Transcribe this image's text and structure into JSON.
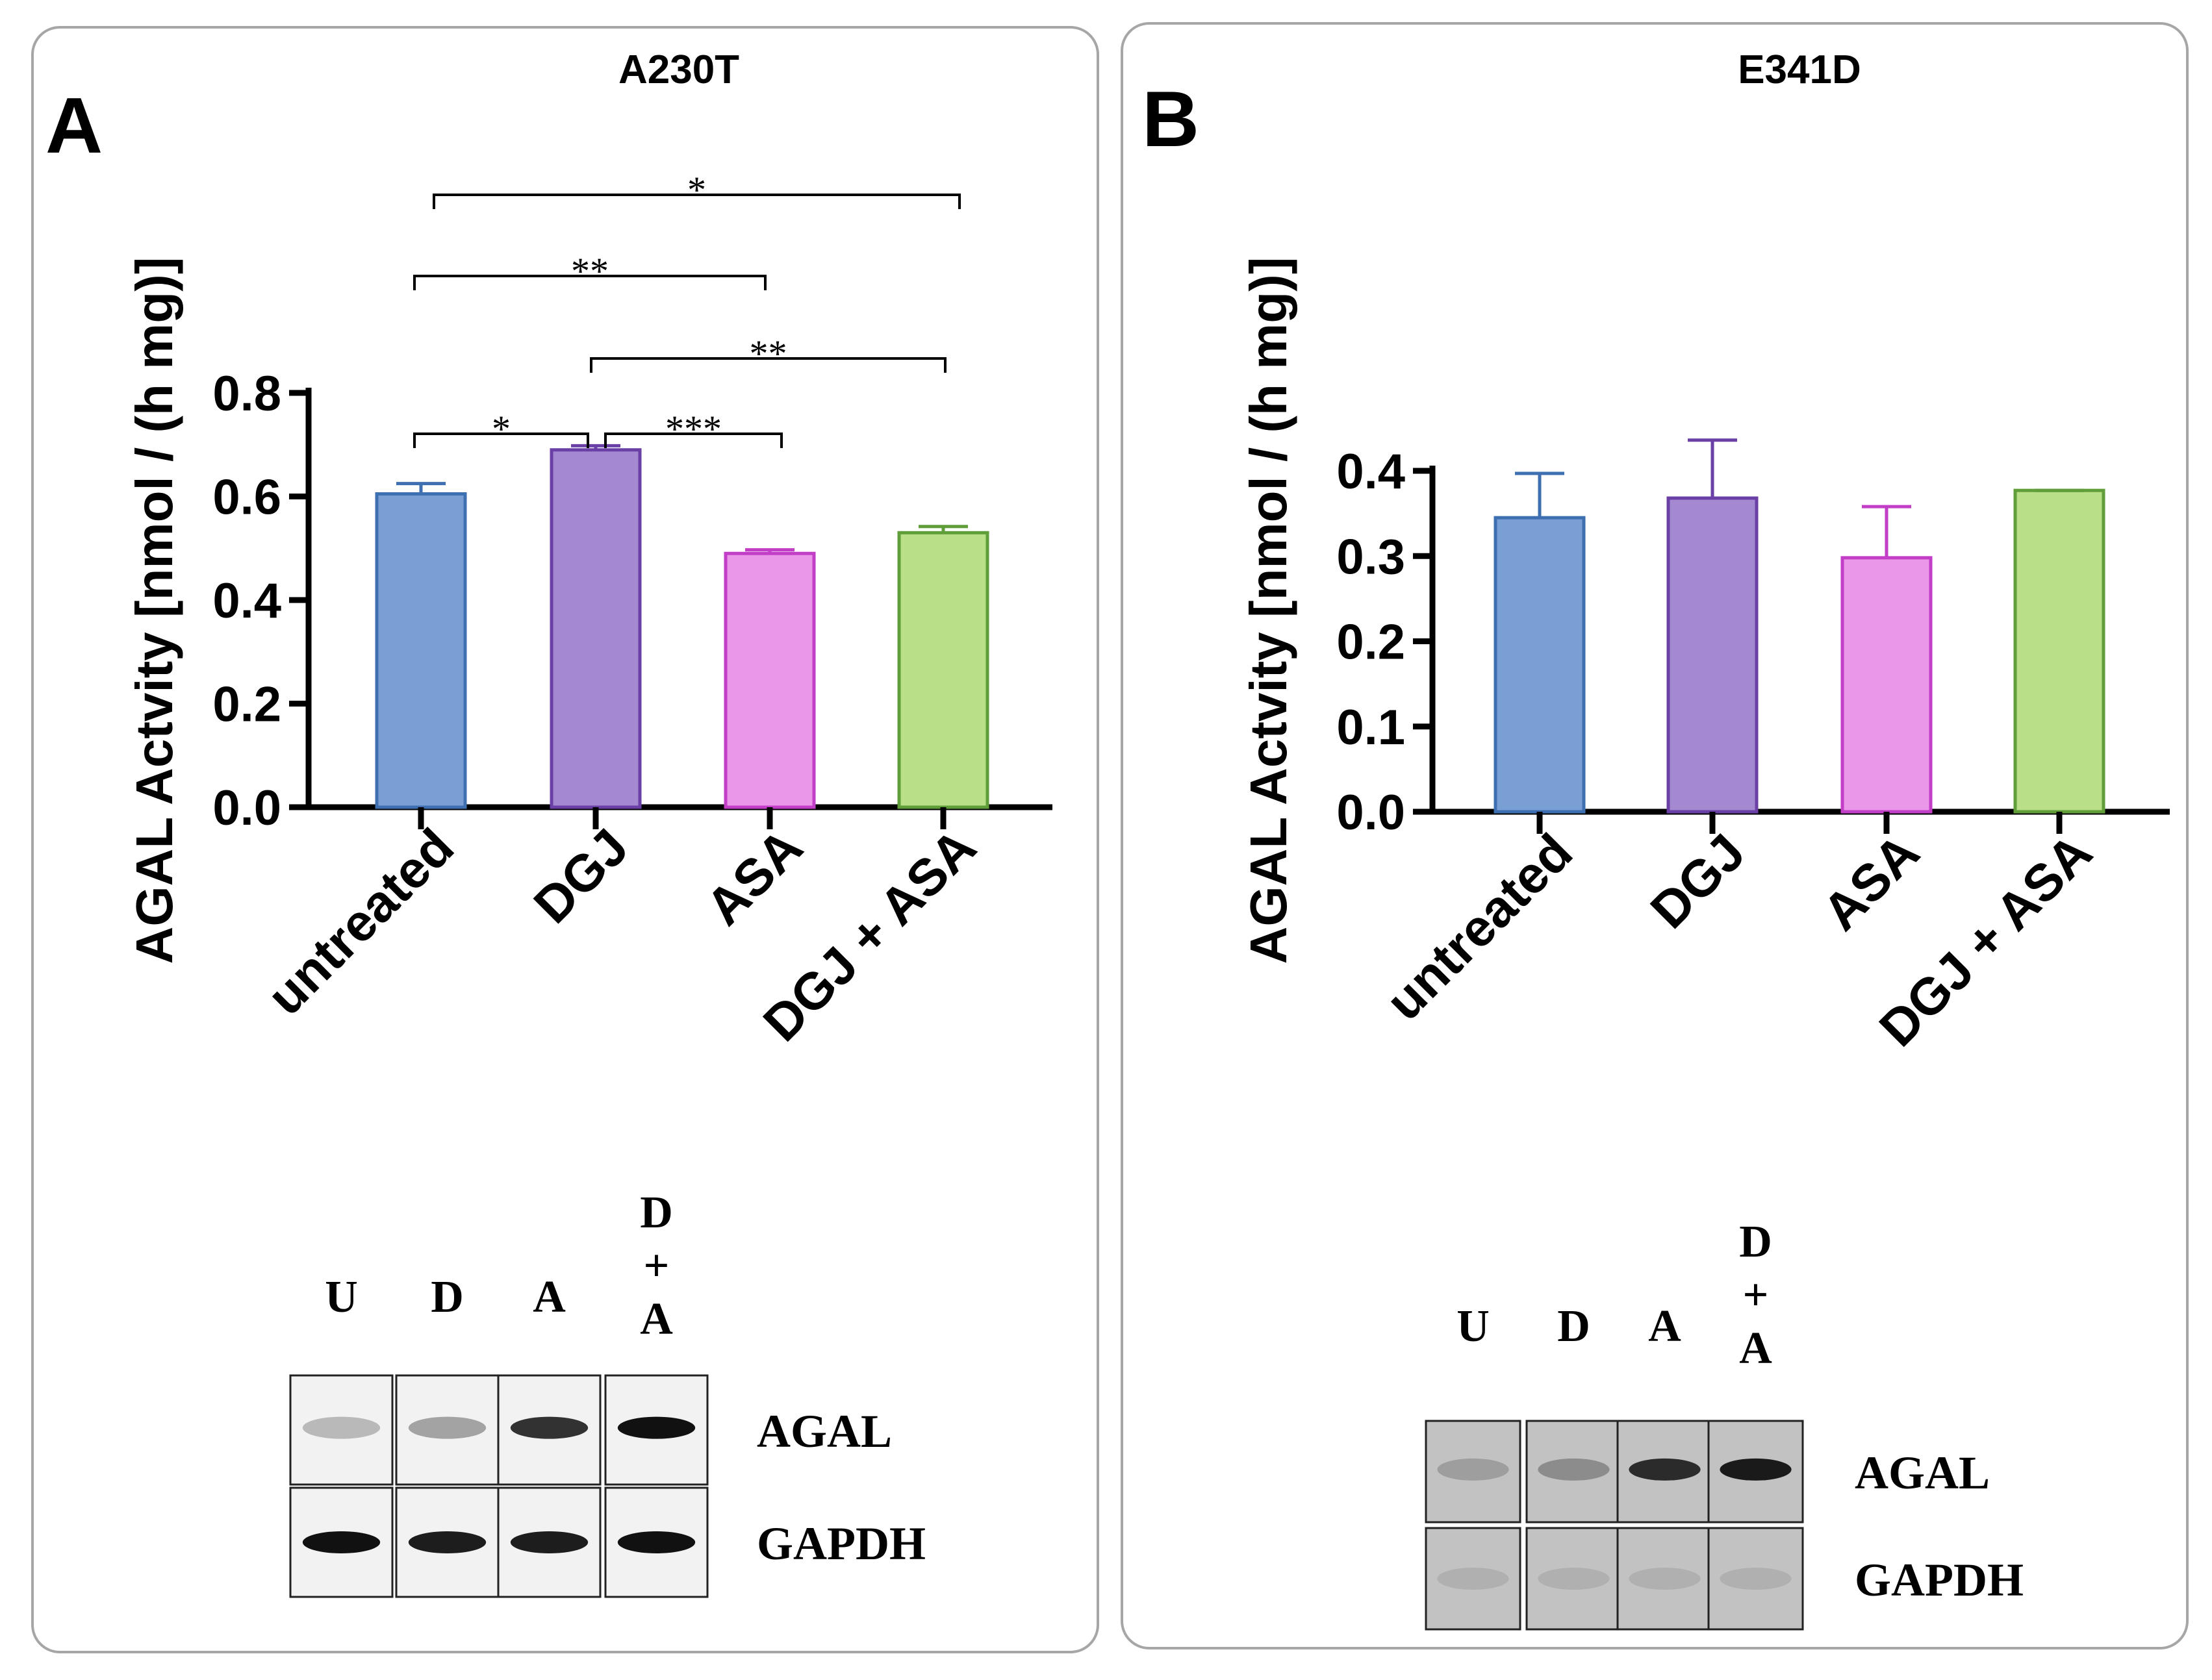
{
  "panels": [
    {
      "letter": "A",
      "title": "A230T",
      "ylabel": "AGAL Actvity [nmol / (h mg)]",
      "blot": {
        "lanes": [
          "U",
          "D",
          "A",
          "D\n+\nA"
        ],
        "rows": [
          "AGAL",
          "GAPDH"
        ],
        "agal_band_intensity": [
          0.25,
          0.35,
          0.85,
          1.0
        ],
        "gapdh_band_intensity": [
          1.0,
          0.95,
          0.95,
          1.0
        ],
        "background": "light"
      }
    },
    {
      "letter": "B",
      "title": "E341D",
      "ylabel": "AGAL Actvity [nmol / (h mg)]",
      "blot": {
        "lanes": [
          "U",
          "D",
          "A",
          "D\n+\nA"
        ],
        "rows": [
          "AGAL",
          "GAPDH"
        ],
        "agal_band_intensity": [
          0.2,
          0.3,
          0.85,
          0.95
        ],
        "gapdh_band_intensity": [
          0.1,
          0.1,
          0.1,
          0.1
        ],
        "background": "gray"
      }
    }
  ],
  "chart_data": [
    {
      "type": "bar",
      "title": "A230T",
      "categories": [
        "untreated",
        "DGJ",
        "ASA",
        "DGJ + ASA"
      ],
      "values": [
        0.605,
        0.69,
        0.49,
        0.53
      ],
      "errors": [
        0.02,
        0.008,
        0.007,
        0.012
      ],
      "colors": [
        "#7a9fd4",
        "#a489d1",
        "#ea97ea",
        "#b9df88"
      ],
      "edge_colors": [
        "#3e6fb0",
        "#6a3fa6",
        "#c23ec6",
        "#5f9e38"
      ],
      "xlabel": "",
      "ylabel": "AGAL Actvity [nmol / (h mg)]",
      "ylim": [
        0,
        0.8
      ],
      "yticks": [
        "0.0",
        "0.2",
        "0.4",
        "0.6",
        "0.8"
      ],
      "significance": [
        {
          "from": 0,
          "to": 3,
          "label": "*"
        },
        {
          "from": 0,
          "to": 2,
          "label": "**"
        },
        {
          "from": 1,
          "to": 3,
          "label": "**"
        },
        {
          "from": 0,
          "to": 1,
          "label": "*"
        },
        {
          "from": 1,
          "to": 2,
          "label": "***"
        }
      ]
    },
    {
      "type": "bar",
      "title": "E341D",
      "categories": [
        "untreated",
        "DGJ",
        "ASA",
        "DGJ + ASA"
      ],
      "values": [
        0.345,
        0.368,
        0.298,
        0.377
      ],
      "errors": [
        0.052,
        0.068,
        0.06,
        0.0
      ],
      "colors": [
        "#7a9fd4",
        "#a489d1",
        "#ea97ea",
        "#b9df88"
      ],
      "edge_colors": [
        "#3e6fb0",
        "#6a3fa6",
        "#c23ec6",
        "#5f9e38"
      ],
      "xlabel": "",
      "ylabel": "AGAL Actvity [nmol / (h mg)]",
      "ylim": [
        0,
        0.4
      ],
      "yticks": [
        "0.0",
        "0.1",
        "0.2",
        "0.3",
        "0.4"
      ],
      "significance": []
    }
  ]
}
